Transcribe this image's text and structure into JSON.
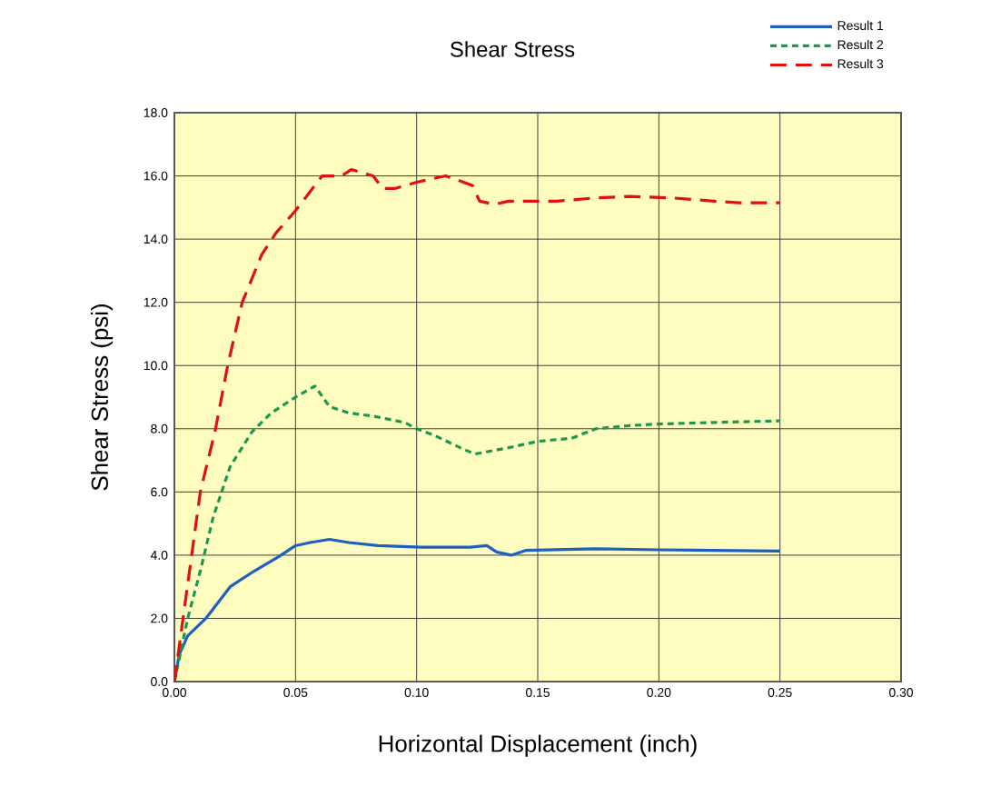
{
  "chart_data": {
    "type": "line",
    "title": "Shear Stress",
    "xlabel": "Horizontal Displacement (inch)",
    "ylabel": "Shear Stress (psi)",
    "xlim": [
      0,
      0.3
    ],
    "ylim": [
      0,
      18
    ],
    "xticks": [
      {
        "value": 0,
        "label": "0.00"
      },
      {
        "value": 0.05,
        "label": "0.05"
      },
      {
        "value": 0.1,
        "label": "0.10"
      },
      {
        "value": 0.15,
        "label": "0.15"
      },
      {
        "value": 0.2,
        "label": "0.20"
      },
      {
        "value": 0.25,
        "label": "0.25"
      },
      {
        "value": 0.3,
        "label": "0.30"
      }
    ],
    "yticks": [
      {
        "value": 0,
        "label": "0.0"
      },
      {
        "value": 2,
        "label": "2.0"
      },
      {
        "value": 4,
        "label": "4.0"
      },
      {
        "value": 6,
        "label": "6.0"
      },
      {
        "value": 8,
        "label": "8.0"
      },
      {
        "value": 10,
        "label": "10.0"
      },
      {
        "value": 12,
        "label": "12.0"
      },
      {
        "value": 14,
        "label": "14.0"
      },
      {
        "value": 16,
        "label": "16.0"
      },
      {
        "value": 18,
        "label": "18.0"
      }
    ],
    "grid": true,
    "legend": "top right",
    "marker": "none",
    "series": [
      {
        "name": "Result 1",
        "color": "#1f5fbf",
        "line_style": "solid",
        "x": [
          0,
          0.002,
          0.0055,
          0.013,
          0.023,
          0.033,
          0.043,
          0.05,
          0.056,
          0.064,
          0.072,
          0.084,
          0.102,
          0.122,
          0.129,
          0.133,
          0.139,
          0.145,
          0.174,
          0.2,
          0.25
        ],
        "values": [
          0,
          0.85,
          1.45,
          2.0,
          3.0,
          3.5,
          3.95,
          4.3,
          4.4,
          4.5,
          4.4,
          4.3,
          4.25,
          4.25,
          4.3,
          4.1,
          4.0,
          4.15,
          4.2,
          4.17,
          4.13
        ]
      },
      {
        "name": "Result 2",
        "color": "#1a9850",
        "line_style": "dotted",
        "x": [
          0,
          0.0055,
          0.0107,
          0.016,
          0.023,
          0.032,
          0.04,
          0.05,
          0.058,
          0.064,
          0.072,
          0.082,
          0.095,
          0.1,
          0.107,
          0.118,
          0.124,
          0.138,
          0.15,
          0.164,
          0.174,
          0.188,
          0.2,
          0.223,
          0.25
        ],
        "values": [
          0,
          2.0,
          3.5,
          5.2,
          6.8,
          7.9,
          8.5,
          9.0,
          9.35,
          8.7,
          8.5,
          8.4,
          8.2,
          8.0,
          7.8,
          7.4,
          7.2,
          7.4,
          7.6,
          7.7,
          8.0,
          8.1,
          8.15,
          8.2,
          8.25
        ]
      },
      {
        "name": "Result 3",
        "color": "#e01010",
        "line_style": "dashed",
        "x": [
          0,
          0.0107,
          0.017,
          0.022,
          0.028,
          0.036,
          0.042,
          0.05,
          0.056,
          0.061,
          0.069,
          0.073,
          0.082,
          0.086,
          0.091,
          0.1,
          0.112,
          0.123,
          0.126,
          0.132,
          0.138,
          0.158,
          0.173,
          0.188,
          0.206,
          0.223,
          0.233,
          0.25
        ],
        "values": [
          0,
          6.0,
          8.0,
          10.0,
          12.0,
          13.5,
          14.2,
          14.9,
          15.5,
          16.0,
          16.0,
          16.2,
          16.0,
          15.6,
          15.6,
          15.8,
          16.0,
          15.7,
          15.2,
          15.1,
          15.2,
          15.2,
          15.3,
          15.35,
          15.3,
          15.2,
          15.15,
          15.15
        ]
      }
    ]
  }
}
